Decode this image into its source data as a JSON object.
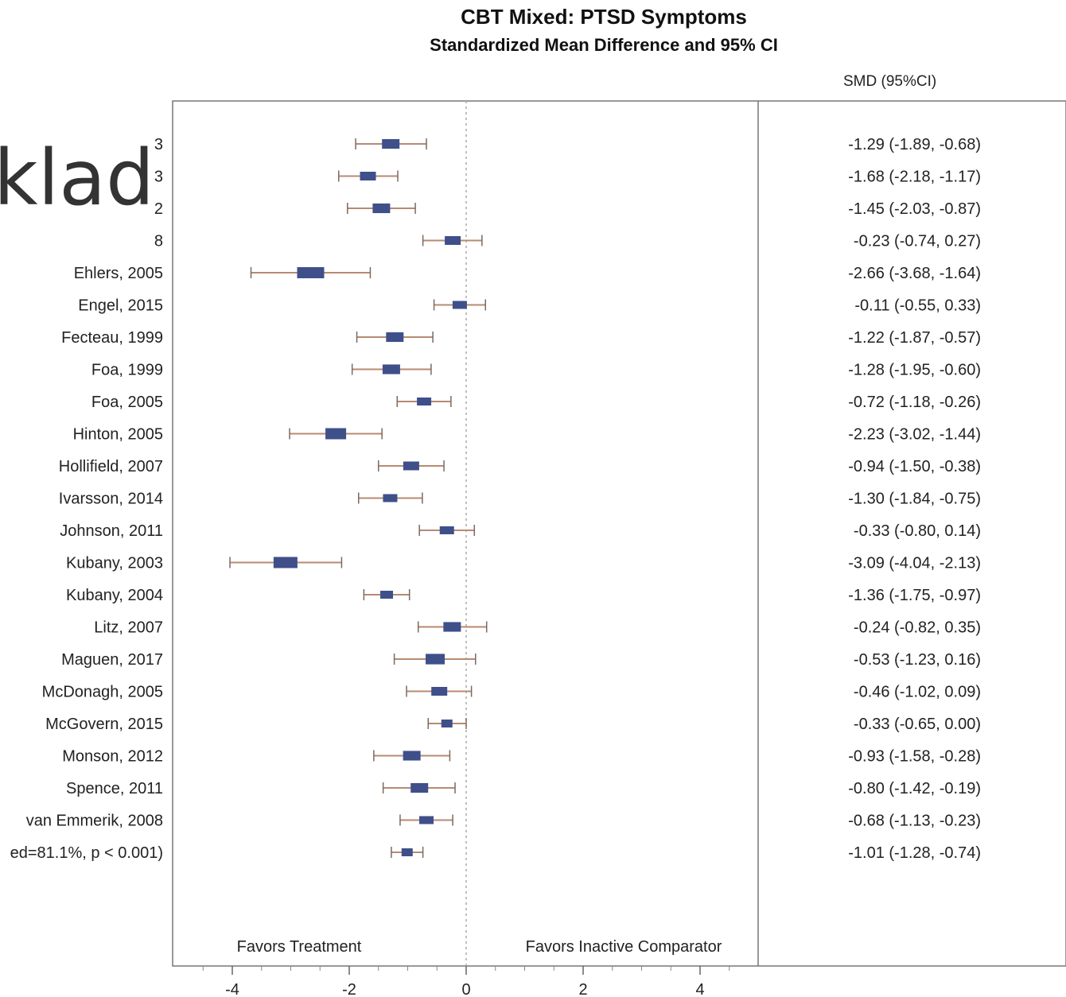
{
  "chart_data": {
    "type": "forest",
    "title": "CBT Mixed: PTSD Symptoms",
    "subtitle": "Standardized Mean Difference and 95% CI",
    "ci_column_header": "SMD (95%CI)",
    "xlim": [
      -5,
      5
    ],
    "xticks": [
      -4,
      -2,
      0,
      2,
      4
    ],
    "reference_line": 0,
    "grid": false,
    "favors_left": "Favors Treatment",
    "favors_right": "Favors Inactive Comparator",
    "marker_color": "#3f4f8a",
    "ci_line_color": "#b88a72",
    "studies": [
      {
        "label": "3",
        "smd": -1.29,
        "lo": -1.89,
        "hi": -0.68,
        "ci_text": "-1.29 (-1.89, -0.68)",
        "w": 22
      },
      {
        "label": "3",
        "smd": -1.68,
        "lo": -2.18,
        "hi": -1.17,
        "ci_text": "-1.68 (-2.18, -1.17)",
        "w": 20
      },
      {
        "label": "2",
        "smd": -1.45,
        "lo": -2.03,
        "hi": -0.87,
        "ci_text": "-1.45 (-2.03, -0.87)",
        "w": 22
      },
      {
        "label": "8",
        "smd": -0.23,
        "lo": -0.74,
        "hi": 0.27,
        "ci_text": "-0.23 (-0.74, 0.27)",
        "w": 20
      },
      {
        "label": "Ehlers, 2005",
        "smd": -2.66,
        "lo": -3.68,
        "hi": -1.64,
        "ci_text": "-2.66 (-3.68, -1.64)",
        "w": 34
      },
      {
        "label": "Engel, 2015",
        "smd": -0.11,
        "lo": -0.55,
        "hi": 0.33,
        "ci_text": "-0.11 (-0.55, 0.33)",
        "w": 18
      },
      {
        "label": "Fecteau, 1999",
        "smd": -1.22,
        "lo": -1.87,
        "hi": -0.57,
        "ci_text": "-1.22 (-1.87, -0.57)",
        "w": 22
      },
      {
        "label": "Foa, 1999",
        "smd": -1.28,
        "lo": -1.95,
        "hi": -0.6,
        "ci_text": "-1.28 (-1.95, -0.60)",
        "w": 22
      },
      {
        "label": "Foa, 2005",
        "smd": -0.72,
        "lo": -1.18,
        "hi": -0.26,
        "ci_text": "-0.72 (-1.18, -0.26)",
        "w": 18
      },
      {
        "label": "Hinton, 2005",
        "smd": -2.23,
        "lo": -3.02,
        "hi": -1.44,
        "ci_text": "-2.23 (-3.02, -1.44)",
        "w": 26
      },
      {
        "label": "Hollifield, 2007",
        "smd": -0.94,
        "lo": -1.5,
        "hi": -0.38,
        "ci_text": "-0.94 (-1.50, -0.38)",
        "w": 20
      },
      {
        "label": "Ivarsson, 2014",
        "smd": -1.3,
        "lo": -1.84,
        "hi": -0.75,
        "ci_text": "-1.30 (-1.84, -0.75)",
        "w": 18
      },
      {
        "label": "Johnson, 2011",
        "smd": -0.33,
        "lo": -0.8,
        "hi": 0.14,
        "ci_text": "-0.33 (-0.80, 0.14)",
        "w": 18
      },
      {
        "label": "Kubany, 2003",
        "smd": -3.09,
        "lo": -4.04,
        "hi": -2.13,
        "ci_text": "-3.09 (-4.04, -2.13)",
        "w": 30
      },
      {
        "label": "Kubany, 2004",
        "smd": -1.36,
        "lo": -1.75,
        "hi": -0.97,
        "ci_text": "-1.36 (-1.75, -0.97)",
        "w": 16
      },
      {
        "label": "Litz, 2007",
        "smd": -0.24,
        "lo": -0.82,
        "hi": 0.35,
        "ci_text": "-0.24 (-0.82, 0.35)",
        "w": 22
      },
      {
        "label": "Maguen, 2017",
        "smd": -0.53,
        "lo": -1.23,
        "hi": 0.16,
        "ci_text": "-0.53 (-1.23, 0.16)",
        "w": 24
      },
      {
        "label": "McDonagh, 2005",
        "smd": -0.46,
        "lo": -1.02,
        "hi": 0.09,
        "ci_text": "-0.46 (-1.02, 0.09)",
        "w": 20
      },
      {
        "label": "McGovern, 2015",
        "smd": -0.33,
        "lo": -0.65,
        "hi": 0.0,
        "ci_text": "-0.33 (-0.65, 0.00)",
        "w": 14
      },
      {
        "label": "Monson, 2012",
        "smd": -0.93,
        "lo": -1.58,
        "hi": -0.28,
        "ci_text": "-0.93 (-1.58, -0.28)",
        "w": 22
      },
      {
        "label": "Spence, 2011",
        "smd": -0.8,
        "lo": -1.42,
        "hi": -0.19,
        "ci_text": "-0.80 (-1.42, -0.19)",
        "w": 22
      },
      {
        "label": "van Emmerik, 2008",
        "smd": -0.68,
        "lo": -1.13,
        "hi": -0.23,
        "ci_text": "-0.68 (-1.13, -0.23)",
        "w": 18
      },
      {
        "label": "ed=81.1%, p < 0.001)",
        "smd": -1.01,
        "lo": -1.28,
        "hi": -0.74,
        "ci_text": "-1.01 (-1.28, -0.74)",
        "w": 14
      }
    ]
  },
  "overlay_text": "klad"
}
